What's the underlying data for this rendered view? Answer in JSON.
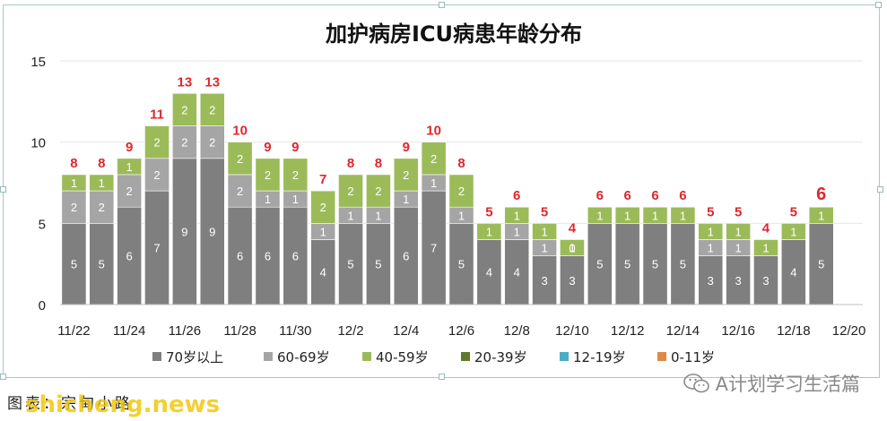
{
  "footer": {
    "caption": "图表：宗甸小路",
    "watermark": "shicheng.news",
    "account": "A计划学习生活篇"
  },
  "colors": {
    "s70": "#7f7f7f",
    "s60": "#a5a5a5",
    "s40": "#9bbb59",
    "s20": "#5e7a2e",
    "s12": "#4bacc6",
    "s0": "#e0874a",
    "total": "#e0262c"
  },
  "chart_data": {
    "type": "bar",
    "title": "加护病房ICU病患年龄分布",
    "stacked": true,
    "ylim": [
      0,
      15
    ],
    "yticks": [
      0,
      5,
      10,
      15
    ],
    "categories": [
      "11/22",
      "11/23",
      "11/24",
      "11/25",
      "11/26",
      "11/27",
      "11/28",
      "11/29",
      "11/30",
      "12/1",
      "12/2",
      "12/3",
      "12/4",
      "12/5",
      "12/6",
      "12/7",
      "12/8",
      "12/9",
      "12/10",
      "12/11",
      "12/12",
      "12/13",
      "12/14",
      "12/15",
      "12/16",
      "12/17",
      "12/18",
      "12/19",
      "12/20"
    ],
    "x_tick_labels": [
      "11/22",
      "",
      "11/24",
      "",
      "11/26",
      "",
      "11/28",
      "",
      "11/30",
      "",
      "12/2",
      "",
      "12/4",
      "",
      "12/6",
      "",
      "12/8",
      "",
      "12/10",
      "",
      "12/12",
      "",
      "12/14",
      "",
      "12/16",
      "",
      "12/18",
      "",
      "12/20"
    ],
    "series": [
      {
        "name": "70岁以上",
        "values": [
          5,
          5,
          6,
          7,
          9,
          9,
          6,
          6,
          6,
          4,
          5,
          5,
          6,
          7,
          5,
          4,
          4,
          3,
          3,
          5,
          5,
          5,
          5,
          3,
          3,
          3,
          4,
          5,
          null
        ]
      },
      {
        "name": "60-69岁",
        "values": [
          2,
          2,
          2,
          2,
          2,
          2,
          2,
          1,
          1,
          1,
          1,
          1,
          1,
          1,
          1,
          null,
          1,
          1,
          0,
          null,
          null,
          null,
          null,
          1,
          1,
          null,
          null,
          null,
          null
        ]
      },
      {
        "name": "40-59岁",
        "values": [
          1,
          1,
          1,
          2,
          2,
          2,
          2,
          2,
          2,
          2,
          2,
          2,
          2,
          2,
          2,
          1,
          1,
          1,
          1,
          1,
          1,
          1,
          1,
          1,
          1,
          1,
          1,
          1,
          null
        ]
      },
      {
        "name": "20-39岁",
        "values": [
          null,
          null,
          null,
          null,
          null,
          null,
          null,
          null,
          null,
          null,
          null,
          null,
          null,
          null,
          null,
          null,
          null,
          null,
          null,
          null,
          null,
          null,
          null,
          null,
          null,
          null,
          null,
          null,
          null
        ]
      },
      {
        "name": "12-19岁",
        "values": [
          null,
          null,
          null,
          null,
          null,
          null,
          null,
          null,
          null,
          null,
          null,
          null,
          null,
          null,
          null,
          null,
          null,
          null,
          null,
          null,
          null,
          null,
          null,
          null,
          null,
          null,
          null,
          null,
          null
        ]
      },
      {
        "name": "0-11岁",
        "values": [
          null,
          null,
          null,
          null,
          null,
          null,
          null,
          null,
          null,
          null,
          null,
          null,
          null,
          null,
          null,
          null,
          null,
          null,
          null,
          null,
          null,
          null,
          null,
          null,
          null,
          null,
          null,
          null,
          null
        ]
      }
    ],
    "totals": [
      8,
      8,
      9,
      11,
      13,
      13,
      10,
      9,
      9,
      7,
      8,
      8,
      9,
      10,
      8,
      5,
      6,
      5,
      4,
      6,
      6,
      6,
      6,
      5,
      5,
      4,
      5,
      6,
      null
    ],
    "legend_position": "bottom",
    "grid": true
  }
}
